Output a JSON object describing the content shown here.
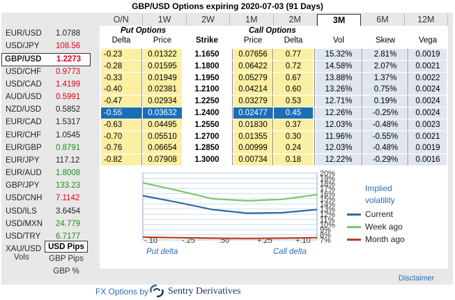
{
  "title": "GBP/USD Options expiring 2020-07-03 (91 Days)",
  "tabs": [
    "O/N",
    "1W",
    "2W",
    "1M",
    "2M",
    "3M",
    "6M",
    "12M"
  ],
  "selected_tab": "3M",
  "sidebar": {
    "pairs": [
      {
        "name": "EUR/USD",
        "value": "1.0788",
        "color": "#222222"
      },
      {
        "name": "USD/JPY",
        "value": "108.56",
        "color": "#e8001c"
      },
      {
        "name": "GBP/USD",
        "value": "1.2273",
        "color": "#e8001c",
        "selected": true
      },
      {
        "name": "USD/CHF",
        "value": "0.9773",
        "color": "#e8001c"
      },
      {
        "name": "USD/CAD",
        "value": "1.4199",
        "color": "#e8001c"
      },
      {
        "name": "AUD/USD",
        "value": "0.5991",
        "color": "#e8001c"
      },
      {
        "name": "NZD/USD",
        "value": "0.5852",
        "color": "#222222"
      },
      {
        "name": "EUR/CAD",
        "value": "1.5317",
        "color": "#222222"
      },
      {
        "name": "EUR/CHF",
        "value": "1.0545",
        "color": "#222222"
      },
      {
        "name": "EUR/GBP",
        "value": "0.8791",
        "color": "#1e8f1e"
      },
      {
        "name": "EUR/JPY",
        "value": "117.12",
        "color": "#222222"
      },
      {
        "name": "EUR/AUD",
        "value": "1.8008",
        "color": "#1e8f1e"
      },
      {
        "name": "GBP/JPY",
        "value": "133.23",
        "color": "#1e8f1e"
      },
      {
        "name": "USD/CNH",
        "value": "7.1142",
        "color": "#e8001c"
      },
      {
        "name": "USD/ILS",
        "value": "3.6454",
        "color": "#222222"
      },
      {
        "name": "USD/MXN",
        "value": "24.779",
        "color": "#1e8f1e"
      },
      {
        "name": "USD/TRY",
        "value": "6.7177",
        "color": "#1e8f1e"
      },
      {
        "name": "XAU/USD",
        "value": "1611.6",
        "color": "#222222"
      }
    ],
    "vols_label": "Vols",
    "vol_options": [
      "USD Pips",
      "GBP Pips",
      "GBP %"
    ],
    "selected_vol": "USD Pips"
  },
  "table": {
    "put_group": "Put Options",
    "call_group": "Call Options",
    "headers": {
      "put_delta": "Delta",
      "put_price": "Price",
      "strike": "Strike",
      "call_price": "Price",
      "call_delta": "Delta",
      "vol": "Vol",
      "skew": "Skew",
      "vega": "Vega"
    },
    "rows": [
      {
        "put_delta": "-0.23",
        "put_price": "0.01322",
        "strike": "1.1650",
        "call_price": "0.07656",
        "call_delta": "0.77",
        "vol": "15.32%",
        "skew": "2.81%",
        "vega": "0.0019"
      },
      {
        "put_delta": "-0.28",
        "put_price": "0.01595",
        "strike": "1.1800",
        "call_price": "0.06422",
        "call_delta": "0.72",
        "vol": "14.58%",
        "skew": "2.07%",
        "vega": "0.0021"
      },
      {
        "put_delta": "-0.33",
        "put_price": "0.01949",
        "strike": "1.1950",
        "call_price": "0.05279",
        "call_delta": "0.67",
        "vol": "13.88%",
        "skew": "1.37%",
        "vega": "0.0022"
      },
      {
        "put_delta": "-0.40",
        "put_price": "0.02381",
        "strike": "1.2100",
        "call_price": "0.04214",
        "call_delta": "0.60",
        "vol": "13.26%",
        "skew": "0.75%",
        "vega": "0.0024"
      },
      {
        "put_delta": "-0.47",
        "put_price": "0.02934",
        "strike": "1.2250",
        "call_price": "0.03279",
        "call_delta": "0.53",
        "vol": "12.71%",
        "skew": "0.19%",
        "vega": "0.0024"
      },
      {
        "put_delta": "-0.55",
        "put_price": "0.03632",
        "strike": "1.2400",
        "call_price": "0.02477",
        "call_delta": "0.45",
        "vol": "12.26%",
        "skew": "-0.25%",
        "vega": "0.0024",
        "selected": true
      },
      {
        "put_delta": "-0.63",
        "put_price": "0.04495",
        "strike": "1.2550",
        "call_price": "0.01830",
        "call_delta": "0.37",
        "vol": "12.03%",
        "skew": "-0.48%",
        "vega": "0.0023"
      },
      {
        "put_delta": "-0.70",
        "put_price": "0.05510",
        "strike": "1.2700",
        "call_price": "0.01355",
        "call_delta": "0.30",
        "vol": "11.96%",
        "skew": "-0.55%",
        "vega": "0.0021"
      },
      {
        "put_delta": "-0.76",
        "put_price": "0.06654",
        "strike": "1.2850",
        "call_price": "0.00999",
        "call_delta": "0.24",
        "vol": "12.03%",
        "skew": "-0.48%",
        "vega": "0.0019"
      },
      {
        "put_delta": "-0.82",
        "put_price": "0.07908",
        "strike": "1.3000",
        "call_price": "0.00734",
        "call_delta": "0.18",
        "vol": "12.22%",
        "skew": "-0.29%",
        "vega": "0.0016"
      }
    ]
  },
  "chart_data": {
    "type": "line",
    "legend_title": "Implied volatility",
    "x_ticks": [
      "-.10",
      "-.25",
      ".50",
      "+.25",
      "+.10"
    ],
    "y_ticks": [
      "20%",
      "19%",
      "18%",
      "17%",
      "16%",
      "15%",
      "14%",
      "13%",
      "12%",
      "11%",
      "10%",
      "9%",
      "8%",
      "7%"
    ],
    "ylim": [
      7,
      20
    ],
    "x_left_label": "Put delta",
    "x_right_label": "Call delta",
    "series": [
      {
        "name": "Current",
        "color": "#2d6aa3",
        "values": [
          15.6,
          14.3,
          12.9,
          12.2,
          12.3,
          12.9
        ]
      },
      {
        "name": "Week ago",
        "color": "#7cc76a",
        "values": [
          18.1,
          16.6,
          15.0,
          14.6,
          14.9,
          15.8
        ]
      },
      {
        "name": "Month ago",
        "color": "#b83a1e",
        "values": [
          7.55,
          7.45,
          7.35,
          7.3,
          7.35,
          7.45
        ]
      }
    ]
  },
  "disclaimer": "Disclaimer",
  "footer": {
    "prefix": "FX Options by",
    "brand": "Sentry Derivatives"
  }
}
